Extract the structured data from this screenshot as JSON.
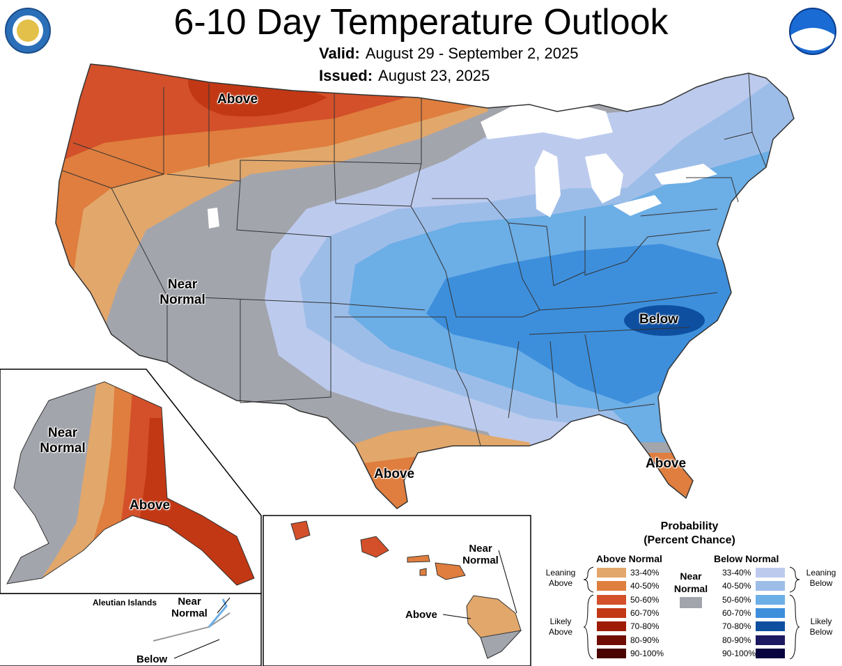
{
  "title": "6-10 Day Temperature Outlook",
  "valid": {
    "label": "Valid:",
    "value": "August 29 - September 2, 2025"
  },
  "issued": {
    "label": "Issued:",
    "value": "August 23, 2025"
  },
  "labels": {
    "above_nw": "Above",
    "near_normal_west_1": "Near",
    "near_normal_west_2": "Normal",
    "above_tx": "Above",
    "above_fl": "Above",
    "below_se": "Below",
    "ak_near_1": "Near",
    "ak_near_2": "Normal",
    "ak_above": "Above",
    "aleutian_title": "Aleutian Islands",
    "aleutian_near_1": "Near",
    "aleutian_near_2": "Normal",
    "aleutian_below": "Below",
    "hi_near_1": "Near",
    "hi_near_2": "Normal",
    "hi_above": "Above"
  },
  "legend": {
    "title_1": "Probability",
    "title_2": "(Percent Chance)",
    "above_head": "Above Normal",
    "below_head": "Below Normal",
    "near_1": "Near",
    "near_2": "Normal",
    "near_color": "#a3a5ad",
    "leaning_above_1": "Leaning",
    "leaning_above_2": "Above",
    "likely_above_1": "Likely",
    "likely_above_2": "Above",
    "leaning_below_1": "Leaning",
    "leaning_below_2": "Below",
    "likely_below_1": "Likely",
    "likely_below_2": "Below",
    "above": [
      {
        "range": "33-40%",
        "color": "#e2a76b"
      },
      {
        "range": "40-50%",
        "color": "#df7e3e"
      },
      {
        "range": "50-60%",
        "color": "#d3502a"
      },
      {
        "range": "60-70%",
        "color": "#c23814"
      },
      {
        "range": "70-80%",
        "color": "#9e1c05"
      },
      {
        "range": "80-90%",
        "color": "#6f0d05"
      },
      {
        "range": "90-100%",
        "color": "#4a0400"
      }
    ],
    "below": [
      {
        "range": "33-40%",
        "color": "#bccbed"
      },
      {
        "range": "40-50%",
        "color": "#9dbde9"
      },
      {
        "range": "50-60%",
        "color": "#6caee6"
      },
      {
        "range": "60-70%",
        "color": "#3d8fdc"
      },
      {
        "range": "70-80%",
        "color": "#0e4fa0"
      },
      {
        "range": "80-90%",
        "color": "#1d1a62"
      },
      {
        "range": "90-100%",
        "color": "#08043f"
      }
    ]
  }
}
